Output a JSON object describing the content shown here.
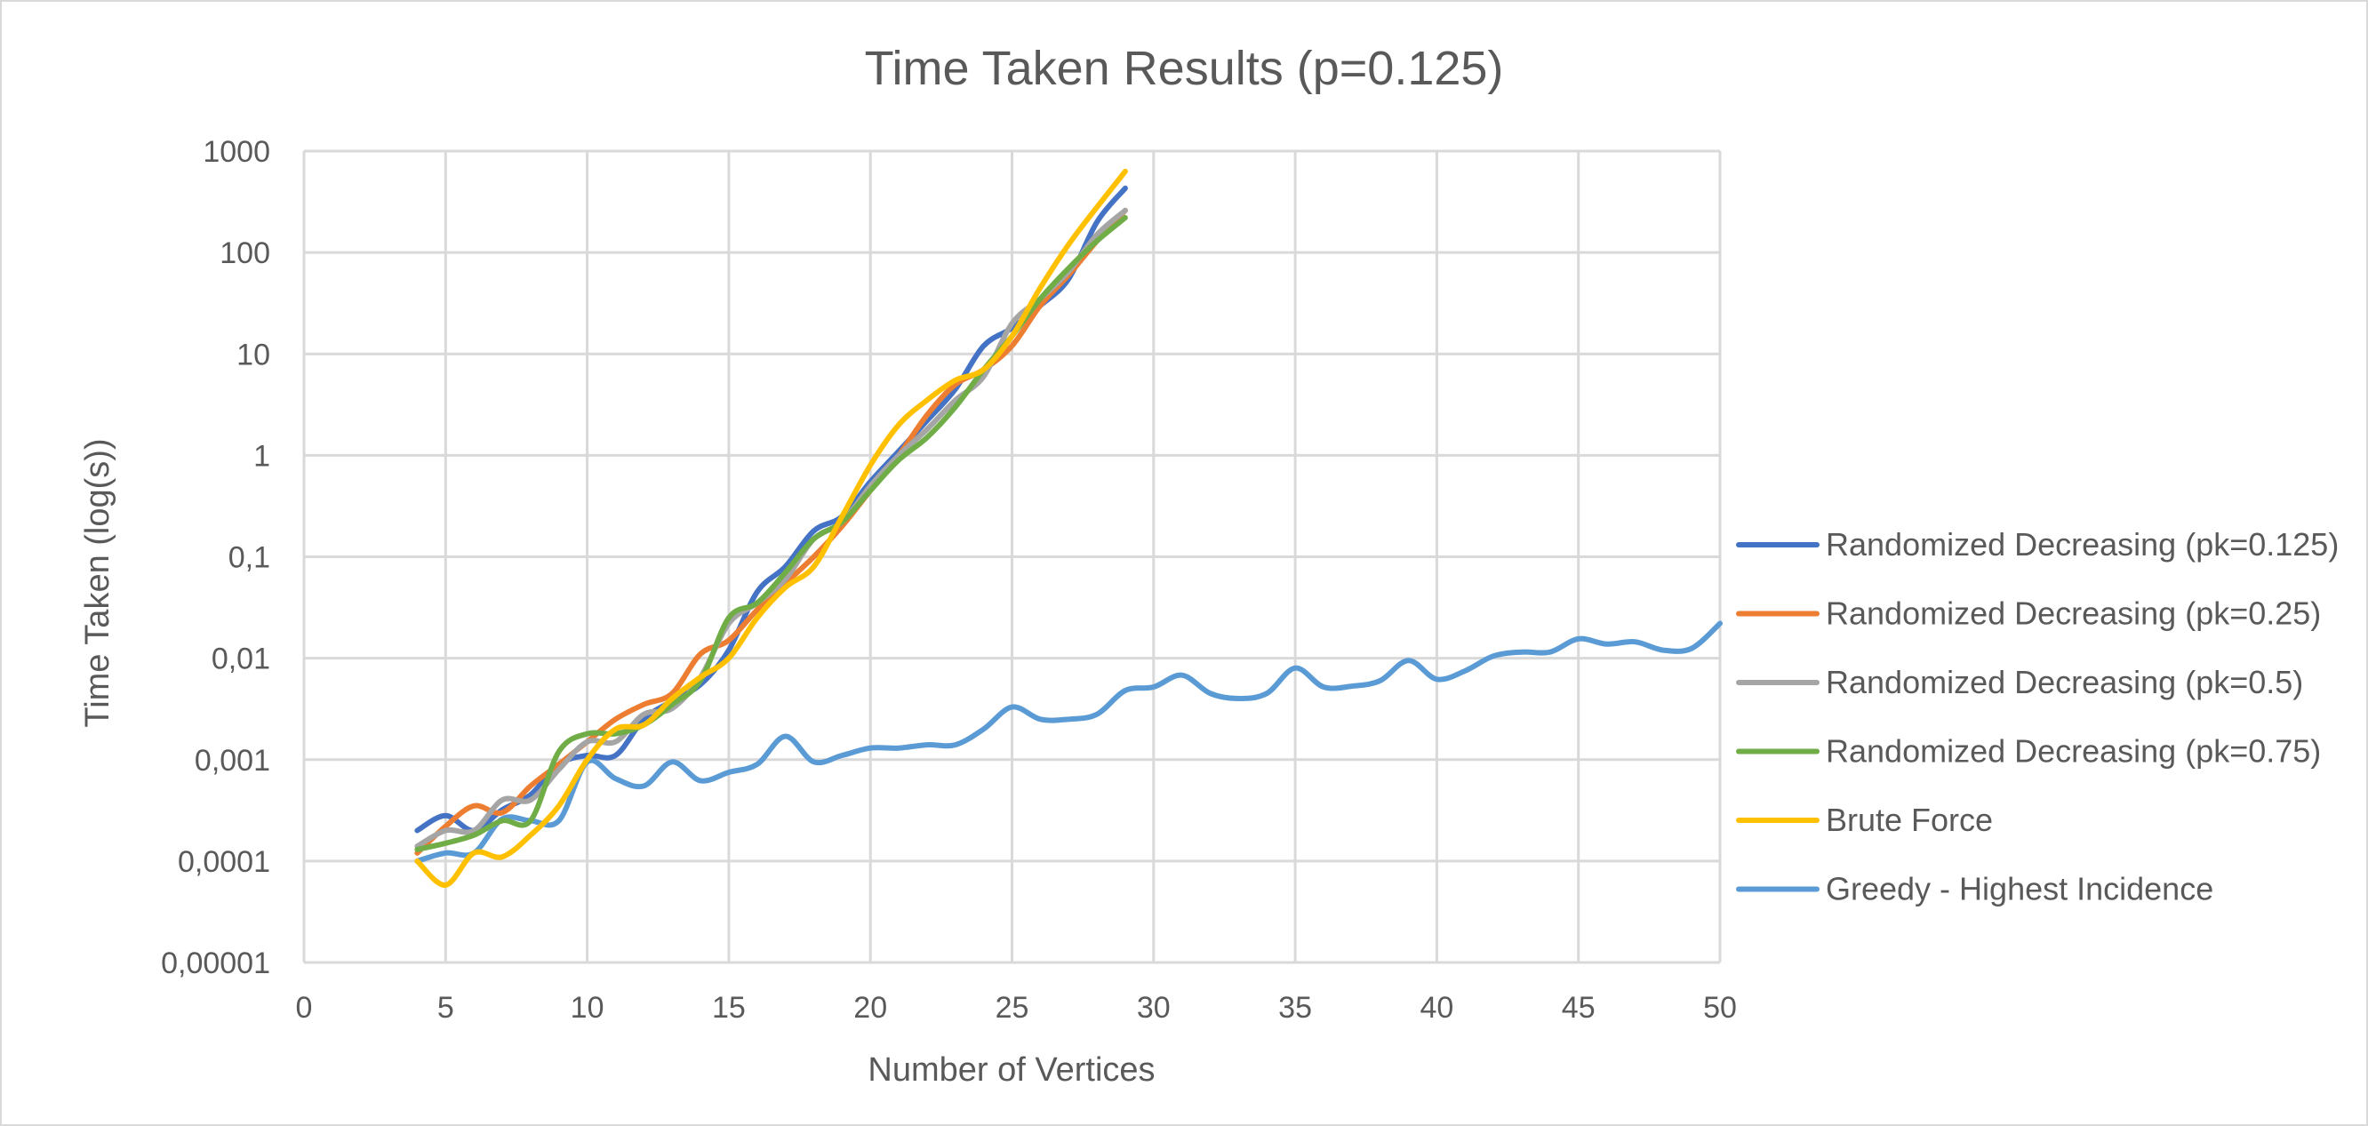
{
  "chart_data": {
    "type": "line",
    "title": "Time Taken Results (p=0.125)",
    "xlabel": "Number of Vertices",
    "ylabel": "Time Taken (log(s))",
    "x_scale": "linear",
    "y_scale": "log",
    "xlim": [
      0,
      50
    ],
    "ylim": [
      1e-05,
      1000
    ],
    "x_ticks": [
      "0",
      "5",
      "10",
      "15",
      "20",
      "25",
      "30",
      "35",
      "40",
      "45",
      "50"
    ],
    "y_ticks": [
      "0,00001",
      "0,0001",
      "0,001",
      "0,01",
      "0,1",
      "1",
      "10",
      "100",
      "1000"
    ],
    "grid": true,
    "legend_position": "right",
    "series": [
      {
        "name": "Randomized Decreasing (pk=0.125)",
        "color": "#4472c4",
        "x": [
          4,
          5,
          6,
          7,
          8,
          9,
          10,
          11,
          12,
          13,
          14,
          15,
          16,
          17,
          18,
          19,
          20,
          21,
          22,
          23,
          24,
          25,
          26,
          27,
          28,
          29
        ],
        "y": [
          0.0002,
          0.00028,
          0.0002,
          0.00032,
          0.00045,
          0.0009,
          0.0011,
          0.0011,
          0.0025,
          0.0038,
          0.0055,
          0.012,
          0.045,
          0.08,
          0.18,
          0.25,
          0.55,
          1.1,
          2.2,
          4.5,
          12,
          18,
          30,
          55,
          200,
          430
        ]
      },
      {
        "name": "Randomized Decreasing (pk=0.25)",
        "color": "#ed7d31",
        "x": [
          4,
          5,
          6,
          7,
          8,
          9,
          10,
          11,
          12,
          13,
          14,
          15,
          16,
          17,
          18,
          19,
          20,
          21,
          22,
          23,
          24,
          25,
          26,
          27,
          28,
          29
        ],
        "y": [
          0.00012,
          0.00022,
          0.00035,
          0.0003,
          0.00055,
          0.0009,
          0.0015,
          0.0025,
          0.0035,
          0.0045,
          0.011,
          0.015,
          0.03,
          0.055,
          0.1,
          0.2,
          0.45,
          1.0,
          2.5,
          5,
          7,
          12,
          30,
          60,
          130,
          260
        ]
      },
      {
        "name": "Randomized Decreasing (pk=0.5)",
        "color": "#a5a5a5",
        "x": [
          4,
          5,
          6,
          7,
          8,
          9,
          10,
          11,
          12,
          13,
          14,
          15,
          16,
          17,
          18,
          19,
          20,
          21,
          22,
          23,
          24,
          25,
          26,
          27,
          28,
          29
        ],
        "y": [
          0.00014,
          0.0002,
          0.0002,
          0.0004,
          0.0004,
          0.0008,
          0.0015,
          0.0015,
          0.0028,
          0.0032,
          0.0065,
          0.022,
          0.035,
          0.06,
          0.15,
          0.22,
          0.5,
          1.0,
          1.8,
          3.5,
          6,
          20,
          35,
          65,
          150,
          260
        ]
      },
      {
        "name": "Randomized Decreasing (pk=0.75)",
        "color": "#70ad47",
        "x": [
          4,
          5,
          6,
          7,
          8,
          9,
          10,
          11,
          12,
          13,
          14,
          15,
          16,
          17,
          18,
          19,
          20,
          21,
          22,
          23,
          24,
          25,
          26,
          27,
          28,
          29
        ],
        "y": [
          0.00013,
          0.00015,
          0.00018,
          0.00025,
          0.00025,
          0.0012,
          0.0018,
          0.0018,
          0.0022,
          0.0035,
          0.006,
          0.025,
          0.035,
          0.07,
          0.15,
          0.22,
          0.45,
          0.9,
          1.5,
          3,
          7,
          15,
          35,
          70,
          130,
          220
        ]
      },
      {
        "name": "Brute Force",
        "color": "#ffc000",
        "x": [
          4,
          5,
          6,
          7,
          8,
          9,
          10,
          11,
          12,
          13,
          14,
          15,
          16,
          17,
          18,
          19,
          20,
          21,
          22,
          23,
          24,
          25,
          26,
          27,
          28,
          29
        ],
        "y": [
          0.0001,
          5.8e-05,
          0.00012,
          0.00011,
          0.00018,
          0.00035,
          0.001,
          0.002,
          0.0022,
          0.004,
          0.0065,
          0.01,
          0.025,
          0.05,
          0.08,
          0.25,
          0.8,
          2.0,
          3.5,
          5.5,
          7,
          15,
          45,
          120,
          280,
          630
        ]
      },
      {
        "name": "Greedy - Highest Incidence",
        "color": "#5b9bd5",
        "x": [
          4,
          5,
          6,
          7,
          8,
          9,
          10,
          11,
          12,
          13,
          14,
          15,
          16,
          17,
          18,
          19,
          20,
          21,
          22,
          23,
          24,
          25,
          26,
          27,
          28,
          29,
          30,
          31,
          32,
          33,
          34,
          35,
          36,
          37,
          38,
          39,
          40,
          41,
          42,
          43,
          44,
          45,
          46,
          47,
          48,
          49,
          50
        ],
        "y": [
          0.0001,
          0.00012,
          0.00012,
          0.00026,
          0.00025,
          0.00025,
          0.00095,
          0.00065,
          0.00055,
          0.00095,
          0.00062,
          0.00075,
          0.0009,
          0.0017,
          0.00095,
          0.0011,
          0.0013,
          0.0013,
          0.0014,
          0.0014,
          0.002,
          0.0033,
          0.0025,
          0.0025,
          0.0028,
          0.0048,
          0.0052,
          0.0068,
          0.0045,
          0.004,
          0.0045,
          0.008,
          0.0052,
          0.0053,
          0.006,
          0.0095,
          0.0062,
          0.0075,
          0.0105,
          0.0115,
          0.0115,
          0.0155,
          0.0138,
          0.0145,
          0.012,
          0.0125,
          0.022
        ]
      }
    ]
  }
}
